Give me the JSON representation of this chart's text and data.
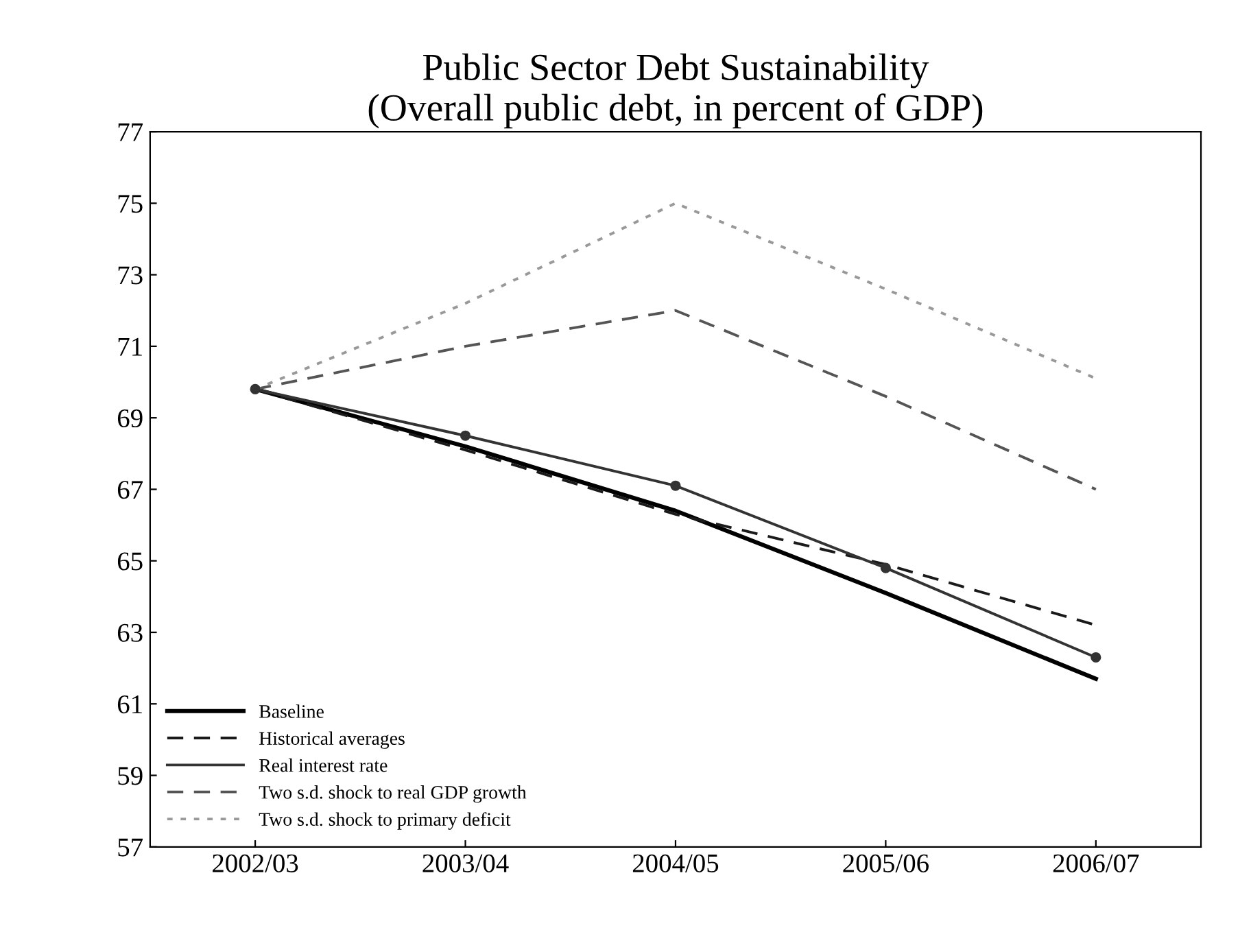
{
  "chart_data": {
    "type": "line",
    "title": "Public Sector Debt Sustainability\n(Overall public debt, in percent of GDP)",
    "categories": [
      "2002/03",
      "2003/04",
      "2004/05",
      "2005/06",
      "2006/07"
    ],
    "series": [
      {
        "name": "Baseline",
        "color": "#000000",
        "line_style": "solid",
        "marker": "none",
        "values": [
          69.8,
          68.2,
          66.4,
          64.1,
          61.7
        ]
      },
      {
        "name": "Historical averages",
        "color": "#1a1a1a",
        "line_style": "dashed",
        "marker": "none",
        "values": [
          69.8,
          68.1,
          66.3,
          64.9,
          63.2
        ]
      },
      {
        "name": "Real interest rate",
        "color": "#333333",
        "line_style": "solid",
        "marker": "circle",
        "values": [
          69.8,
          68.5,
          67.1,
          64.8,
          62.3
        ]
      },
      {
        "name": "Two s.d. shock to real GDP growth",
        "color": "#555555",
        "line_style": "dashed",
        "marker": "none",
        "values": [
          69.8,
          71.0,
          72.0,
          69.6,
          67.0
        ]
      },
      {
        "name": "Two s.d. shock to primary deficit",
        "color": "#999999",
        "line_style": "dotted",
        "marker": "none",
        "values": [
          69.8,
          72.2,
          75.0,
          72.6,
          70.1
        ]
      }
    ],
    "ylim": [
      57,
      77
    ],
    "yticks": [
      57,
      59,
      61,
      63,
      65,
      67,
      69,
      71,
      73,
      75,
      77
    ],
    "grid": false,
    "legend": "bottom left"
  }
}
